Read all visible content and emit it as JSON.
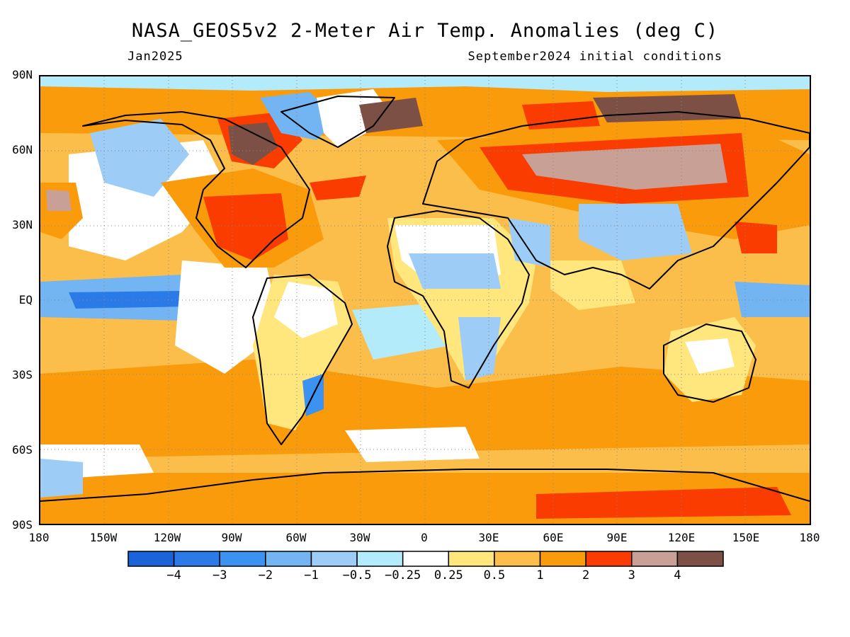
{
  "header": {
    "title": "NASA_GEOS5v2 2-Meter Air Temp. Anomalies (deg C)",
    "month": "Jan2025",
    "init": "September2024 initial conditions"
  },
  "map": {
    "lat_labels": [
      "90N",
      "60N",
      "30N",
      "EQ",
      "30S",
      "60S",
      "90S"
    ],
    "lon_labels": [
      "180",
      "150W",
      "120W",
      "90W",
      "60W",
      "30W",
      "0",
      "30E",
      "60E",
      "90E",
      "120E",
      "150E",
      "180"
    ],
    "regions": [
      {
        "name": "canadian-arctic-anomaly-region",
        "category": 11
      },
      {
        "name": "siberia-anomaly-region",
        "category": 11
      },
      {
        "name": "greenland-east-anomaly-region",
        "category": 12
      },
      {
        "name": "antarctic-anomaly-region",
        "category": 10
      },
      {
        "name": "pacific-cold-tongue-region",
        "category": 1
      },
      {
        "name": "north-america-warm-region",
        "category": 10
      }
    ]
  },
  "colorbar": {
    "colors": [
      "#1964d8",
      "#2a7ae8",
      "#3c92f0",
      "#73b4f2",
      "#9dcdf6",
      "#b4ebfa",
      "#ffffff",
      "#ffe67d",
      "#fcbe4b",
      "#fa9b0c",
      "#fa3c00",
      "#c8a096",
      "#7d5046"
    ],
    "labels": [
      "-4",
      "-3",
      "-2",
      "-1",
      "-0.5",
      "-0.25",
      "0.25",
      "0.5",
      "1",
      "2",
      "3",
      "4"
    ]
  }
}
